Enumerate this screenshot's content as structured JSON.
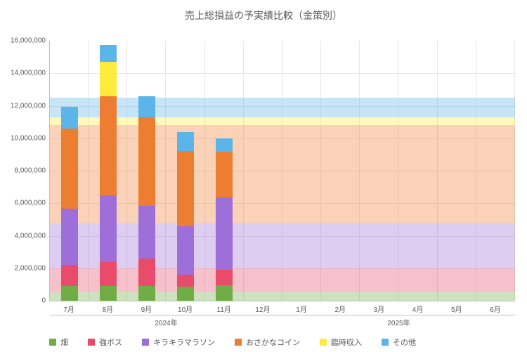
{
  "title": "売上総損益の予実績比較（金策別）",
  "yaxis": {
    "min": 0,
    "max": 16000000,
    "step": 2000000
  },
  "months": [
    "7月",
    "8月",
    "9月",
    "10月",
    "11月",
    "12月",
    "1月",
    "2月",
    "3月",
    "4月",
    "5月",
    "6月"
  ],
  "year_groups": [
    {
      "label": "2024年",
      "span": [
        0,
        6
      ]
    },
    {
      "label": "2025年",
      "span": [
        6,
        12
      ]
    }
  ],
  "series": [
    {
      "key": "hatake",
      "label": "畑",
      "color": "#70ad47"
    },
    {
      "key": "boss",
      "label": "強ボス",
      "color": "#e84c6a"
    },
    {
      "key": "kirakira",
      "label": "キラキラマラソン",
      "color": "#9e6fd8"
    },
    {
      "key": "osakana",
      "label": "おさかなコイン",
      "color": "#ed7d31"
    },
    {
      "key": "rinji",
      "label": "臨時収入",
      "color": "#ffeb3b"
    },
    {
      "key": "sonota",
      "label": "その他",
      "color": "#5bb5e8"
    }
  ],
  "budget": {
    "hatake": [
      500000,
      500000,
      500000,
      500000,
      500000,
      500000,
      500000,
      500000,
      500000,
      500000,
      500000,
      500000
    ],
    "boss": [
      1500000,
      1500000,
      1500000,
      1500000,
      1500000,
      1500000,
      1500000,
      1500000,
      1500000,
      1500000,
      1500000,
      1500000
    ],
    "kirakira": [
      2800000,
      2800000,
      2800000,
      2800000,
      2800000,
      2800000,
      2800000,
      2800000,
      2800000,
      2800000,
      2800000,
      2800000
    ],
    "osakana": [
      6000000,
      6000000,
      6000000,
      6000000,
      6000000,
      6000000,
      6000000,
      6000000,
      6000000,
      6000000,
      6000000,
      6000000
    ],
    "rinji": [
      500000,
      500000,
      500000,
      500000,
      500000,
      500000,
      500000,
      500000,
      500000,
      500000,
      500000,
      500000
    ],
    "sonota": [
      1200000,
      1200000,
      1200000,
      1200000,
      1200000,
      1200000,
      1200000,
      1200000,
      1200000,
      1200000,
      1200000,
      1200000
    ]
  },
  "actual": {
    "hatake": [
      900000,
      900000,
      900000,
      850000,
      950000
    ],
    "boss": [
      1300000,
      1500000,
      1700000,
      750000,
      950000
    ],
    "kirakira": [
      3450000,
      4100000,
      3250000,
      3000000,
      4450000
    ],
    "osakana": [
      4950000,
      6100000,
      5450000,
      4600000,
      2800000
    ],
    "rinji": [
      0,
      2100000,
      0,
      0,
      0
    ],
    "sonota": [
      1350000,
      1050000,
      1300000,
      1200000,
      850000
    ]
  },
  "colors": {
    "grid": "#e6e6e6",
    "axis": "#bfbfbf",
    "text": "#595959",
    "area_opacity": 0.35
  }
}
